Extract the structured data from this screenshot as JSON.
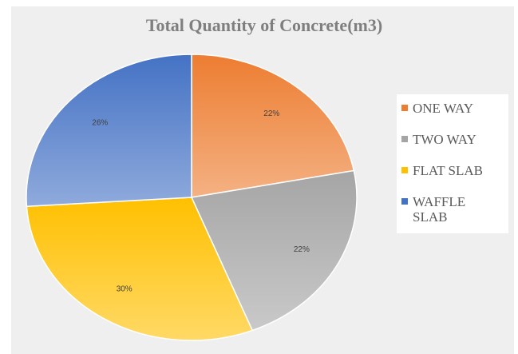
{
  "chart_data": {
    "type": "pie",
    "title": "Total Quantity of Concrete(m3)",
    "categories": [
      "ONE WAY",
      "TWO WAY",
      "FLAT SLAB",
      "WAFFLE SLAB"
    ],
    "values": [
      22,
      22,
      30,
      26
    ],
    "value_labels": [
      "22%",
      "22%",
      "30%",
      "26%"
    ],
    "colors": [
      "#ed7d31",
      "#a5a5a5",
      "#ffc000",
      "#4472c4"
    ],
    "legend": "right"
  }
}
